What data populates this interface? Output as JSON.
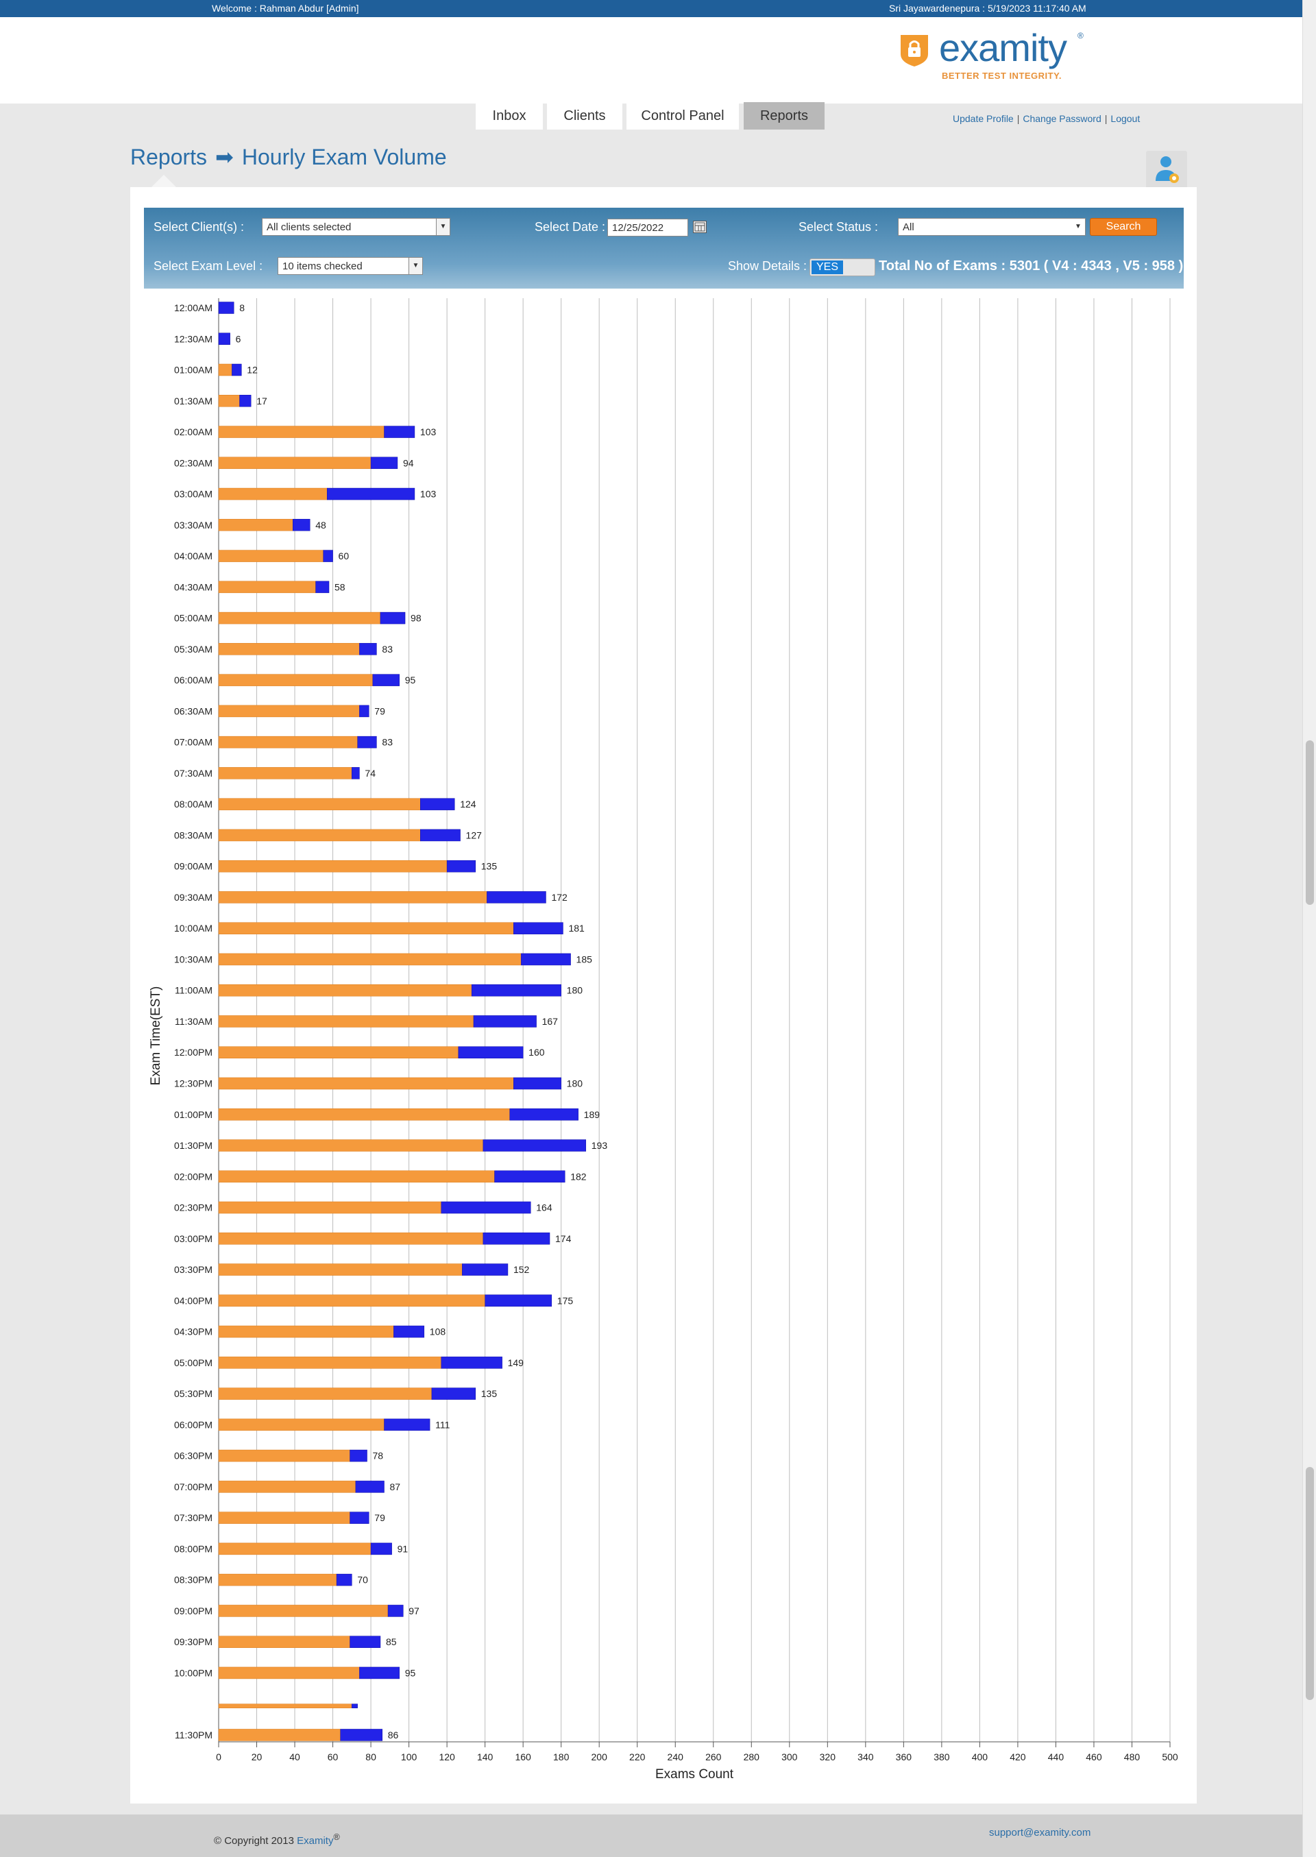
{
  "topbar": {
    "welcome": "Welcome : Rahman Abdur [Admin]",
    "location_time": "Sri Jayawardenepura : 5/19/2023 11:17:40 AM"
  },
  "logo": {
    "name": "examity",
    "tagline": "BETTER TEST INTEGRITY.",
    "reg": "®"
  },
  "nav": {
    "tabs": [
      {
        "label": "Inbox"
      },
      {
        "label": "Clients"
      },
      {
        "label": "Control Panel"
      },
      {
        "label": "Reports",
        "active": true
      }
    ]
  },
  "userlinks": {
    "update_profile": "Update Profile",
    "change_password": "Change Password",
    "logout": "Logout",
    "sep": "|"
  },
  "breadcrumb": {
    "root": "Reports",
    "arrow": "➡",
    "page": "Hourly Exam Volume"
  },
  "filters": {
    "client_label": "Select Client(s) :",
    "client_value": "All clients selected",
    "date_label": "Select Date :",
    "date_value": "12/25/2022",
    "status_label": "Select Status :",
    "status_value": "All",
    "search_label": "Search",
    "exam_level_label": "Select Exam Level :",
    "exam_level_value": "10 items checked",
    "show_details_label": "Show Details :",
    "show_details_value": "YES",
    "total_text": "Total No of Exams : 5301 ( V4 : 4343 , V5 : 958 )"
  },
  "chart_data": {
    "type": "bar",
    "orientation": "horizontal",
    "stacked": true,
    "xlabel": "Exams Count",
    "ylabel": "Exam Time(EST)",
    "xlim": [
      0,
      500
    ],
    "xticks": [
      0,
      20,
      40,
      60,
      80,
      100,
      120,
      140,
      160,
      180,
      200,
      220,
      240,
      260,
      280,
      300,
      320,
      340,
      360,
      380,
      400,
      420,
      440,
      460,
      480,
      500
    ],
    "grid": "vertical",
    "colors": {
      "v4": "#f59a3c",
      "v5": "#2323e8"
    },
    "categories": [
      "12:00AM",
      "12:30AM",
      "01:00AM",
      "01:30AM",
      "02:00AM",
      "02:30AM",
      "03:00AM",
      "03:30AM",
      "04:00AM",
      "04:30AM",
      "05:00AM",
      "05:30AM",
      "06:00AM",
      "06:30AM",
      "07:00AM",
      "07:30AM",
      "08:00AM",
      "08:30AM",
      "09:00AM",
      "09:30AM",
      "10:00AM",
      "10:30AM",
      "11:00AM",
      "11:30AM",
      "12:00PM",
      "12:30PM",
      "01:00PM",
      "01:30PM",
      "02:00PM",
      "02:30PM",
      "03:00PM",
      "03:30PM",
      "04:00PM",
      "04:30PM",
      "05:00PM",
      "05:30PM",
      "06:00PM",
      "06:30PM",
      "07:00PM",
      "07:30PM",
      "08:00PM",
      "08:30PM",
      "09:00PM",
      "09:30PM",
      "10:00PM",
      "",
      "11:30PM"
    ],
    "series": [
      {
        "values": [
          0,
          0,
          7,
          11,
          87,
          80,
          57,
          39,
          55,
          51,
          85,
          74,
          81,
          74,
          73,
          70,
          106,
          106,
          120,
          141,
          155,
          159,
          133,
          134,
          126,
          155,
          153,
          139,
          145,
          117,
          139,
          128,
          140,
          92,
          117,
          112,
          87,
          69,
          72,
          69,
          80,
          62,
          89,
          69,
          74,
          70,
          64
        ]
      },
      {
        "values": [
          8,
          6,
          5,
          6,
          16,
          14,
          46,
          9,
          5,
          7,
          13,
          9,
          14,
          5,
          10,
          4,
          18,
          21,
          15,
          31,
          26,
          26,
          47,
          33,
          34,
          25,
          36,
          54,
          37,
          47,
          35,
          24,
          35,
          16,
          32,
          23,
          24,
          9,
          15,
          10,
          11,
          8,
          8,
          16,
          21,
          3,
          22
        ]
      }
    ],
    "totals": [
      "8",
      "6",
      "12",
      "17",
      "103",
      "94",
      "103",
      "48",
      "60",
      "58",
      "98",
      "83",
      "95",
      "79",
      "83",
      "74",
      "124",
      "127",
      "135",
      "172",
      "181",
      "185",
      "180",
      "167",
      "160",
      "180",
      "189",
      "193",
      "182",
      "164",
      "174",
      "152",
      "175",
      "108",
      "149",
      "135",
      "111",
      "78",
      "87",
      "79",
      "91",
      "70",
      "97",
      "85",
      "95",
      "",
      "86"
    ]
  },
  "footer": {
    "copyright": "© Copyright 2013 ",
    "brand": "Examity",
    "reg": "®",
    "email": "support@examity.com"
  }
}
